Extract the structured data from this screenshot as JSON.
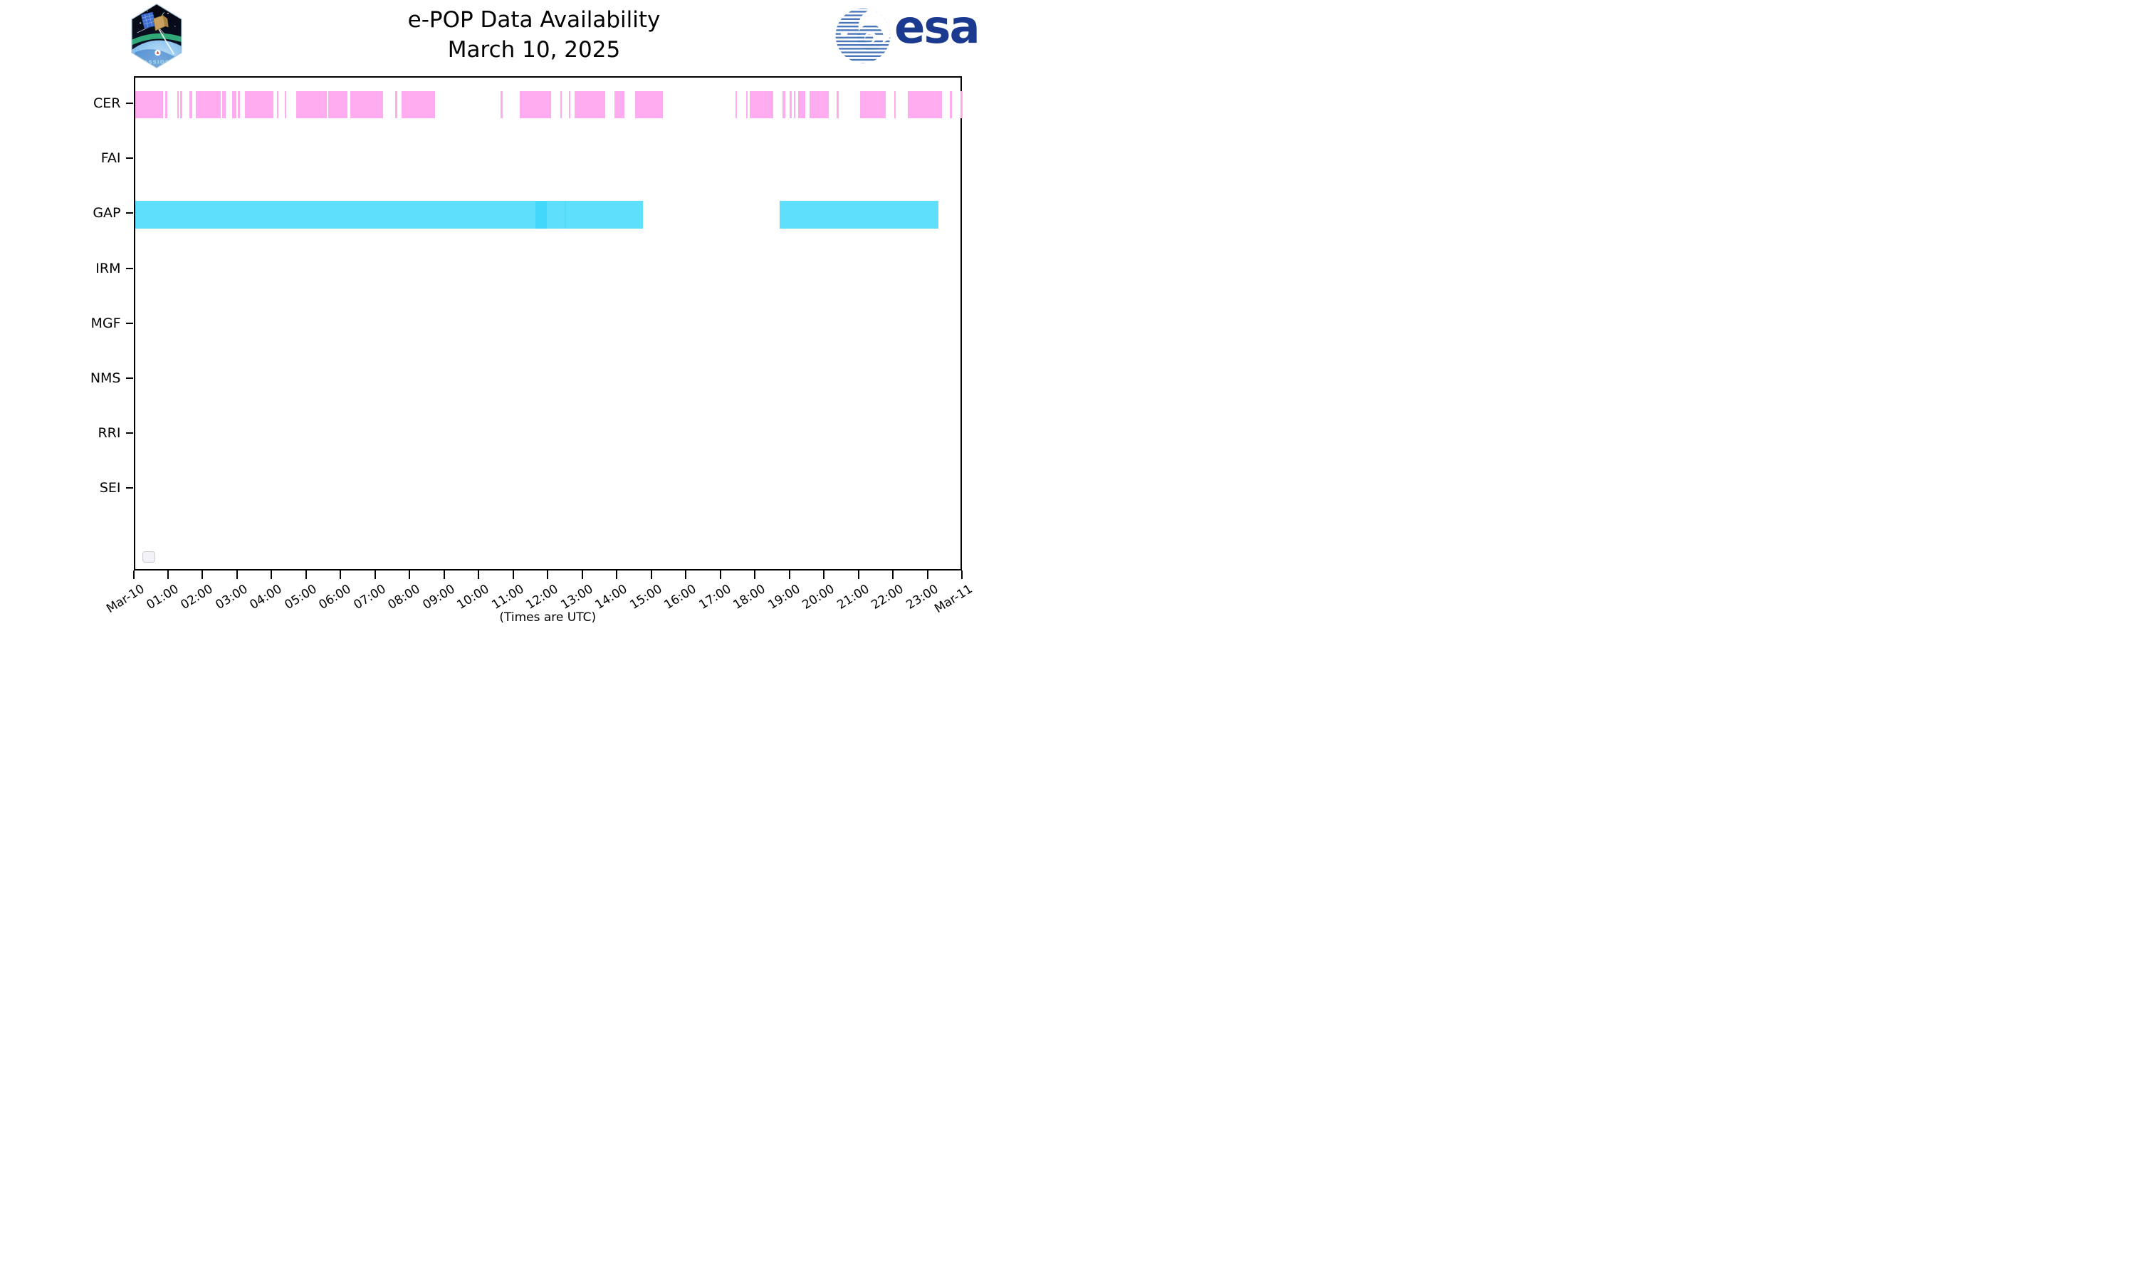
{
  "title": {
    "line1": "e-POP Data Availability",
    "line2": "March 10, 2025"
  },
  "footer": {
    "caption": "(Times are UTC)"
  },
  "logos": {
    "cassiope_label": "CASSIOPE",
    "esa_label": "esa"
  },
  "legend": {
    "empty_box": true
  },
  "chart_data": {
    "type": "bar",
    "subtype": "timeline-availability-broken-barh",
    "title": "e-POP Data Availability March 10, 2025",
    "xlabel": "(Times are UTC)",
    "ylabel": "",
    "x_axis": {
      "units": "hours UTC from 2025-03-10 00:00",
      "range_hours": [
        0,
        24
      ],
      "tick_interval_hours": 1,
      "labels": [
        "Mar-10",
        "01:00",
        "02:00",
        "03:00",
        "04:00",
        "05:00",
        "06:00",
        "07:00",
        "08:00",
        "09:00",
        "10:00",
        "11:00",
        "12:00",
        "13:00",
        "14:00",
        "15:00",
        "16:00",
        "17:00",
        "18:00",
        "19:00",
        "20:00",
        "21:00",
        "22:00",
        "23:00",
        "Mar-11"
      ],
      "label_rotation_deg": -32
    },
    "y_categories": [
      "CER",
      "FAI",
      "GAP",
      "IRM",
      "MGF",
      "NMS",
      "RRI",
      "SEI"
    ],
    "grid": false,
    "legend_position": "lower-left-empty-box",
    "colors": {
      "CER": "#ffabf0",
      "GAP": "#5edffb",
      "GAP_dark_overlay": "#41d8fa",
      "GAP_mid_overlay": "#4cdbfa",
      "axes": "#000000"
    },
    "series": [
      {
        "name": "CER",
        "color": "#ffabf0",
        "intervals": [
          [
            0,
            0.82
          ],
          [
            0.87,
            0.93
          ],
          [
            1.22,
            1.26
          ],
          [
            1.31,
            1.37
          ],
          [
            1.57,
            1.66
          ],
          [
            1.76,
            2.48
          ],
          [
            2.53,
            2.63
          ],
          [
            2.82,
            2.94
          ],
          [
            2.99,
            3.04
          ],
          [
            3.19,
            4.02
          ],
          [
            4.11,
            4.16
          ],
          [
            4.34,
            4.38
          ],
          [
            4.68,
            5.55
          ],
          [
            5.61,
            6.15
          ],
          [
            6.23,
            7.19
          ],
          [
            7.54,
            7.61
          ],
          [
            7.72,
            8.7
          ],
          [
            10.6,
            10.66
          ],
          [
            11.14,
            12.05
          ],
          [
            12.33,
            12.37
          ],
          [
            12.57,
            12.62
          ],
          [
            12.74,
            13.63
          ],
          [
            13.9,
            14.19
          ],
          [
            14.49,
            15.3
          ],
          [
            17.4,
            17.43
          ],
          [
            17.71,
            17.74
          ],
          [
            17.82,
            18.49
          ],
          [
            18.77,
            18.84
          ],
          [
            18.96,
            19.03
          ],
          [
            19.1,
            19.14
          ],
          [
            19.22,
            19.42
          ],
          [
            19.54,
            20.11
          ],
          [
            20.32,
            20.38
          ],
          [
            21,
            21.75
          ],
          [
            22,
            22.05
          ],
          [
            22.4,
            23.38
          ],
          [
            23.61,
            23.67
          ],
          [
            23.92,
            23.98
          ]
        ],
        "overlays": []
      },
      {
        "name": "FAI",
        "color": "#ffabf0",
        "intervals": [],
        "overlays": []
      },
      {
        "name": "GAP",
        "color": "#5edffb",
        "intervals": [
          [
            0,
            14.72
          ],
          [
            18.67,
            23.27
          ]
        ],
        "overlays": [
          {
            "range": [
              11.61,
              11.93
            ],
            "color": "#41d8fa"
          },
          {
            "range": [
              12.44,
              12.5
            ],
            "color": "#4cdbfa"
          }
        ]
      },
      {
        "name": "IRM",
        "color": "#5edffb",
        "intervals": [],
        "overlays": []
      },
      {
        "name": "MGF",
        "color": "#ffabf0",
        "intervals": [],
        "overlays": []
      },
      {
        "name": "NMS",
        "color": "#ffabf0",
        "intervals": [],
        "overlays": []
      },
      {
        "name": "RRI",
        "color": "#5edffb",
        "intervals": [],
        "overlays": []
      },
      {
        "name": "SEI",
        "color": "#ffabf0",
        "intervals": [],
        "overlays": []
      }
    ]
  }
}
